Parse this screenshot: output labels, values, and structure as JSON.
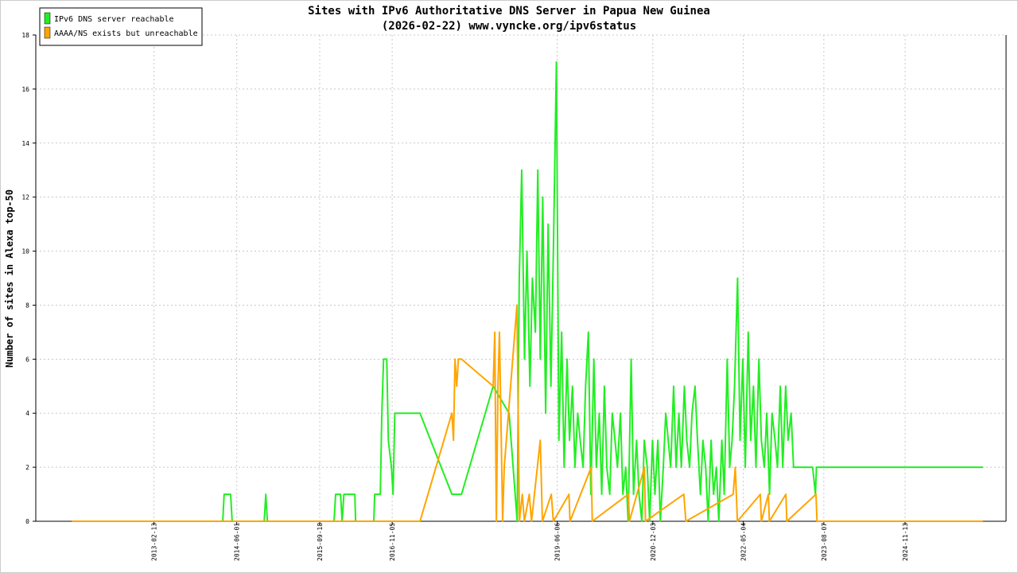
{
  "chart_data": {
    "type": "line",
    "title": "Sites with IPv6 Authoritative DNS Server in Papua New Guinea",
    "subtitle": "(2026-02-22) www.vyncke.org/ipv6status",
    "y_label": "Number of sites in Alexa top-50",
    "xlim": [
      "2011-04-10",
      "2026-06-13"
    ],
    "xticks": [
      "2013-02-13",
      "2014-06-01",
      "2015-09-18",
      "2016-11-05",
      "2019-06-06",
      "2020-12-03",
      "2022-05-04",
      "2023-08-07",
      "2024-11-13"
    ],
    "ylim": [
      0,
      18
    ],
    "yticks": [
      0,
      2,
      4,
      6,
      8,
      10,
      12,
      14,
      16,
      18
    ],
    "grid": true,
    "legend": "top-left",
    "series": [
      {
        "name": "IPv6 DNS server reachable",
        "color": "#22ee22",
        "x": [
          "2011-11-02",
          "2014-03-13",
          "2014-03-21",
          "2014-04-27",
          "2014-05-06",
          "2014-11-05",
          "2014-11-14",
          "2014-11-23",
          "2015-12-09",
          "2015-12-18",
          "2016-01-15",
          "2016-01-24",
          "2016-02-03",
          "2016-04-06",
          "2016-04-10",
          "2016-07-23",
          "2016-07-28",
          "2016-08-29",
          "2016-09-07",
          "2016-09-17",
          "2016-10-05",
          "2016-10-14",
          "2016-11-01",
          "2016-11-10",
          "2016-11-20",
          "2017-04-13",
          "2017-10-12",
          "2017-12-06",
          "2018-06-05",
          "2018-09-04",
          "2018-10-20",
          "2018-11-01",
          "2018-11-15",
          "2018-12-01",
          "2018-12-15",
          "2019-01-01",
          "2019-01-15",
          "2019-02-01",
          "2019-02-15",
          "2019-03-01",
          "2019-03-15",
          "2019-04-01",
          "2019-04-15",
          "2019-05-01",
          "2019-05-15",
          "2019-06-01",
          "2019-06-15",
          "2019-07-01",
          "2019-07-15",
          "2019-08-01",
          "2019-08-15",
          "2019-09-01",
          "2019-09-15",
          "2019-10-01",
          "2019-10-15",
          "2019-11-01",
          "2019-11-15",
          "2019-12-01",
          "2019-12-15",
          "2020-01-01",
          "2020-01-15",
          "2020-02-01",
          "2020-02-15",
          "2020-03-01",
          "2020-03-15",
          "2020-04-01",
          "2020-04-15",
          "2020-05-01",
          "2020-05-15",
          "2020-06-01",
          "2020-06-15",
          "2020-07-01",
          "2020-07-15",
          "2020-08-01",
          "2020-08-15",
          "2020-09-01",
          "2020-09-15",
          "2020-10-01",
          "2020-10-15",
          "2020-11-01",
          "2020-11-15",
          "2020-12-01",
          "2020-12-15",
          "2021-01-01",
          "2021-01-15",
          "2021-02-01",
          "2021-02-15",
          "2021-03-01",
          "2021-03-15",
          "2021-04-01",
          "2021-04-15",
          "2021-05-01",
          "2021-05-15",
          "2021-06-01",
          "2021-06-15",
          "2021-07-01",
          "2021-07-15",
          "2021-08-01",
          "2021-08-15",
          "2021-09-01",
          "2021-09-15",
          "2021-10-01",
          "2021-10-15",
          "2021-11-01",
          "2021-11-15",
          "2021-12-01",
          "2021-12-15",
          "2022-01-01",
          "2022-01-15",
          "2022-02-01",
          "2022-02-15",
          "2022-03-01",
          "2022-03-15",
          "2022-04-01",
          "2022-04-15",
          "2022-05-01",
          "2022-05-15",
          "2022-06-01",
          "2022-06-15",
          "2022-07-01",
          "2022-07-15",
          "2022-08-01",
          "2022-08-15",
          "2022-09-01",
          "2022-09-15",
          "2022-10-01",
          "2022-10-15",
          "2022-11-01",
          "2022-11-15",
          "2022-12-01",
          "2022-12-15",
          "2023-01-01",
          "2023-01-15",
          "2023-02-01",
          "2023-02-15",
          "2023-06-04",
          "2023-06-20",
          "2023-06-26",
          "2026-02-01"
        ],
        "values": [
          0,
          0,
          1,
          1,
          0,
          0,
          1,
          0,
          0,
          1,
          1,
          0,
          1,
          1,
          0,
          0,
          1,
          1,
          4,
          6,
          6,
          3,
          2,
          1,
          4,
          4,
          1,
          1,
          5,
          4,
          0,
          9,
          13,
          6,
          10,
          5,
          9,
          7,
          13,
          6,
          12,
          4,
          11,
          5,
          10,
          17,
          3,
          7,
          2,
          6,
          3,
          5,
          2,
          4,
          3,
          2,
          5,
          7,
          1,
          6,
          2,
          4,
          1,
          5,
          2,
          1,
          4,
          3,
          2,
          4,
          1,
          2,
          0,
          6,
          1,
          3,
          1,
          0,
          3,
          2,
          0,
          3,
          1,
          3,
          0,
          2,
          4,
          3,
          2,
          5,
          2,
          4,
          2,
          5,
          3,
          2,
          4,
          5,
          3,
          1,
          3,
          2,
          0,
          3,
          1,
          2,
          0,
          3,
          1,
          6,
          2,
          3,
          5,
          9,
          3,
          6,
          2,
          7,
          3,
          5,
          2,
          6,
          3,
          2,
          4,
          1,
          4,
          3,
          2,
          5,
          2,
          5,
          3,
          4,
          2,
          2,
          1,
          2,
          2
        ]
      },
      {
        "name": "AAAA/NS exists but unreachable",
        "color": "#ffa500",
        "x": [
          "2011-11-02",
          "2017-04-13",
          "2017-10-12",
          "2017-10-21",
          "2017-10-30",
          "2017-11-09",
          "2017-11-18",
          "2017-12-06",
          "2018-06-05",
          "2018-06-14",
          "2018-06-23",
          "2018-07-02",
          "2018-07-11",
          "2018-07-29",
          "2018-08-07",
          "2018-10-19",
          "2018-11-02",
          "2018-11-18",
          "2018-11-30",
          "2018-12-28",
          "2019-01-10",
          "2019-03-01",
          "2019-03-13",
          "2019-05-03",
          "2019-05-15",
          "2019-08-12",
          "2019-08-18",
          "2019-12-17",
          "2019-12-23",
          "2020-07-16",
          "2020-07-22",
          "2020-10-16",
          "2020-10-22",
          "2021-05-29",
          "2021-06-10",
          "2022-03-07",
          "2022-03-19",
          "2022-03-31",
          "2022-08-09",
          "2022-08-15",
          "2022-09-24",
          "2022-09-30",
          "2023-01-02",
          "2023-01-08",
          "2023-06-23",
          "2023-06-29",
          "2026-02-01"
        ],
        "values": [
          0,
          0,
          4,
          3,
          6,
          5,
          6,
          6,
          5,
          7,
          0,
          5,
          7,
          0,
          2,
          8,
          0,
          1,
          0,
          1,
          0,
          3,
          0,
          1,
          0,
          1,
          0,
          2,
          0,
          1,
          0,
          2,
          0,
          1,
          0,
          1,
          2,
          0,
          1,
          0,
          1,
          0,
          1,
          0,
          1,
          0,
          0
        ]
      }
    ]
  }
}
